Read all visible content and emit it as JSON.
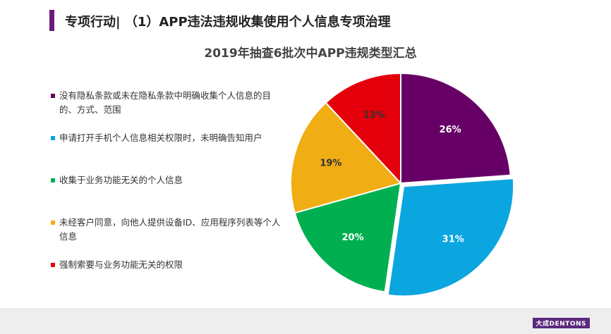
{
  "header": {
    "title": "专项行动| （1）APP违法违规收集使用个人信息专项治理"
  },
  "chart_data": {
    "type": "pie",
    "title": "2019年抽查6批次中APP违规类型汇总",
    "categories": [
      "没有隐私条款或未在隐私条款中明确收集个人信息的目的、方式、范围",
      "申请打开手机个人信息相关权限时，未明确告知用户",
      "收集于业务功能无关的个人信息",
      "未经客户同意，向他人提供设备ID、应用程序列表等个人信息",
      "强制索要与业务功能无关的权限"
    ],
    "values": [
      26,
      31,
      20,
      19,
      13
    ],
    "value_labels": [
      "26%",
      "31%",
      "20%",
      "19%",
      "13%"
    ],
    "colors": [
      "#660066",
      "#0ba6e0",
      "#00b050",
      "#f0ad14",
      "#e3000b"
    ],
    "label_colors": [
      "#ffffff",
      "#ffffff",
      "#ffffff",
      "#333333",
      "#333333"
    ],
    "legend": "left"
  },
  "footer": {
    "logo": "大成DENTONS"
  }
}
